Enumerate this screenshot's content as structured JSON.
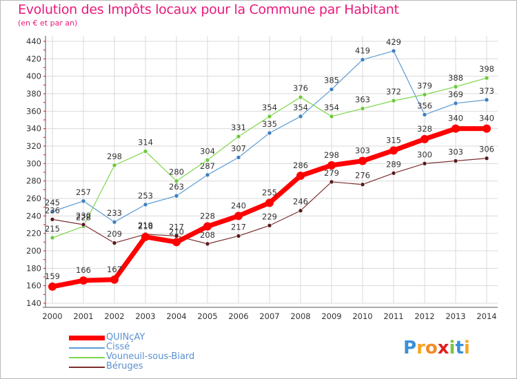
{
  "title": "Evolution des Impôts locaux pour la Commune par Habitant",
  "subtitle": "(en € et par an)",
  "logo": {
    "p": "P",
    "r": "r",
    "o": "o",
    "x": "x",
    "i": "i",
    "t": "t",
    "i2": "i"
  },
  "chart_data": {
    "type": "line",
    "title": "Evolution des Impôts locaux pour la Commune par Habitant",
    "subtitle": "(en € et par an)",
    "xlabel": "",
    "ylabel": "",
    "x": [
      "2000",
      "2001",
      "2002",
      "2003",
      "2004",
      "2005",
      "2006",
      "2007",
      "2008",
      "2009",
      "2010",
      "2011",
      "2012",
      "2013",
      "2014"
    ],
    "ylim": [
      140,
      440
    ],
    "yticks": [
      140,
      160,
      180,
      200,
      220,
      240,
      260,
      280,
      300,
      320,
      340,
      360,
      380,
      400,
      420,
      440
    ],
    "grid": true,
    "legend_position": "bottom-left",
    "series": [
      {
        "name": "Cissé",
        "color": "#5a9bd5",
        "point_color": "#3d7fc1",
        "width": 1.2,
        "values": [
          245,
          257,
          233,
          253,
          263,
          287,
          307,
          335,
          354,
          385,
          419,
          429,
          356,
          369,
          373
        ],
        "labels": [
          "245",
          "257",
          "233",
          "253",
          "263",
          "287",
          "307",
          "335",
          "354",
          "385",
          "419",
          "429",
          "356",
          "369",
          "373"
        ]
      },
      {
        "name": "Vouneuil-sous-Biard",
        "color": "#7fd64a",
        "point_color": "#6cc93a",
        "width": 1.2,
        "values": [
          215,
          228,
          298,
          314,
          280,
          304,
          331,
          354,
          376,
          354,
          363,
          372,
          379,
          388,
          398
        ],
        "labels": [
          "215",
          "228",
          "298",
          "314",
          "280",
          "304",
          "331",
          "354",
          "376",
          "354",
          "363",
          "372",
          "379",
          "388",
          "398"
        ]
      },
      {
        "name": "Béruges",
        "color": "#7a2e2e",
        "point_color": "#5a1a1a",
        "width": 1.2,
        "values": [
          236,
          230,
          209,
          219,
          217,
          208,
          217,
          229,
          246,
          279,
          276,
          289,
          300,
          303,
          306
        ],
        "labels": [
          "236",
          "230",
          "209",
          "219",
          "217",
          "208",
          "217",
          "229",
          "246",
          "279",
          "276",
          "289",
          "300",
          "303",
          "306"
        ]
      },
      {
        "name": "QUINçAY",
        "color": "#ff0000",
        "point_color": "#ff0000",
        "width": 7,
        "values": [
          159,
          166,
          167,
          216,
          210,
          228,
          240,
          255,
          286,
          298,
          303,
          315,
          328,
          340,
          340
        ],
        "labels": [
          "159",
          "166",
          "167",
          "216",
          "210",
          "228",
          "240",
          "255",
          "286",
          "298",
          "303",
          "315",
          "328",
          "340",
          "340"
        ]
      }
    ],
    "legend_order": [
      "QUINçAY",
      "Cissé",
      "Vouneuil-sous-Biard",
      "Béruges"
    ]
  }
}
